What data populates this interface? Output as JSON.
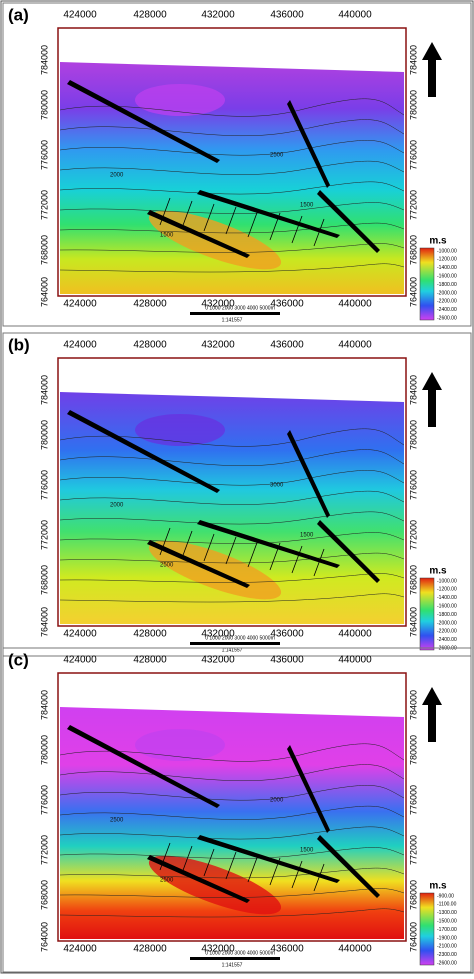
{
  "panels": [
    {
      "label": "(a)",
      "x_ticks": [
        "424000",
        "428000",
        "432000",
        "436000",
        "440000"
      ],
      "y_ticks": [
        "784000",
        "780000",
        "776000",
        "772000",
        "768000",
        "764000"
      ],
      "legend_title": "m.s",
      "legend_labels": [
        "-1000.00",
        "-1200.00",
        "-1400.00",
        "-1600.00",
        "-1800.00",
        "-2000.00",
        "-2200.00",
        "-2400.00",
        "-2600.00"
      ],
      "scale_bar": "0   1000  2000  3000  4000  5000m",
      "scale": "1:141557",
      "contour_labels": [
        "2000",
        "1500",
        "2500",
        "1500"
      ]
    },
    {
      "label": "(b)",
      "x_ticks": [
        "424000",
        "428000",
        "432000",
        "436000",
        "440000"
      ],
      "y_ticks": [
        "784000",
        "780000",
        "776000",
        "772000",
        "768000",
        "764000"
      ],
      "legend_title": "m.s",
      "legend_labels": [
        "-1000.00",
        "-1200.00",
        "-1400.00",
        "-1600.00",
        "-1800.00",
        "-2000.00",
        "-2200.00",
        "-2400.00",
        "-2600.00"
      ],
      "scale_bar": "0   1000  2000  3000  4000  5000m",
      "scale": "1:141557",
      "contour_labels": [
        "2000",
        "2500",
        "3000",
        "1500"
      ]
    },
    {
      "label": "(c)",
      "x_ticks": [
        "424000",
        "428000",
        "432000",
        "436000",
        "440000"
      ],
      "y_ticks": [
        "784000",
        "780000",
        "776000",
        "772000",
        "768000",
        "764000"
      ],
      "legend_title": "m.s",
      "legend_labels": [
        "-900.00",
        "-1100.00",
        "-1300.00",
        "-1500.00",
        "-1700.00",
        "-1900.00",
        "-2100.00",
        "-2300.00",
        "-2600.00"
      ],
      "scale_bar": "0   1000  2000  3000  4000  5000m",
      "scale": "1:141557",
      "contour_labels": [
        "2500",
        "2500",
        "2000",
        "1500"
      ]
    }
  ]
}
